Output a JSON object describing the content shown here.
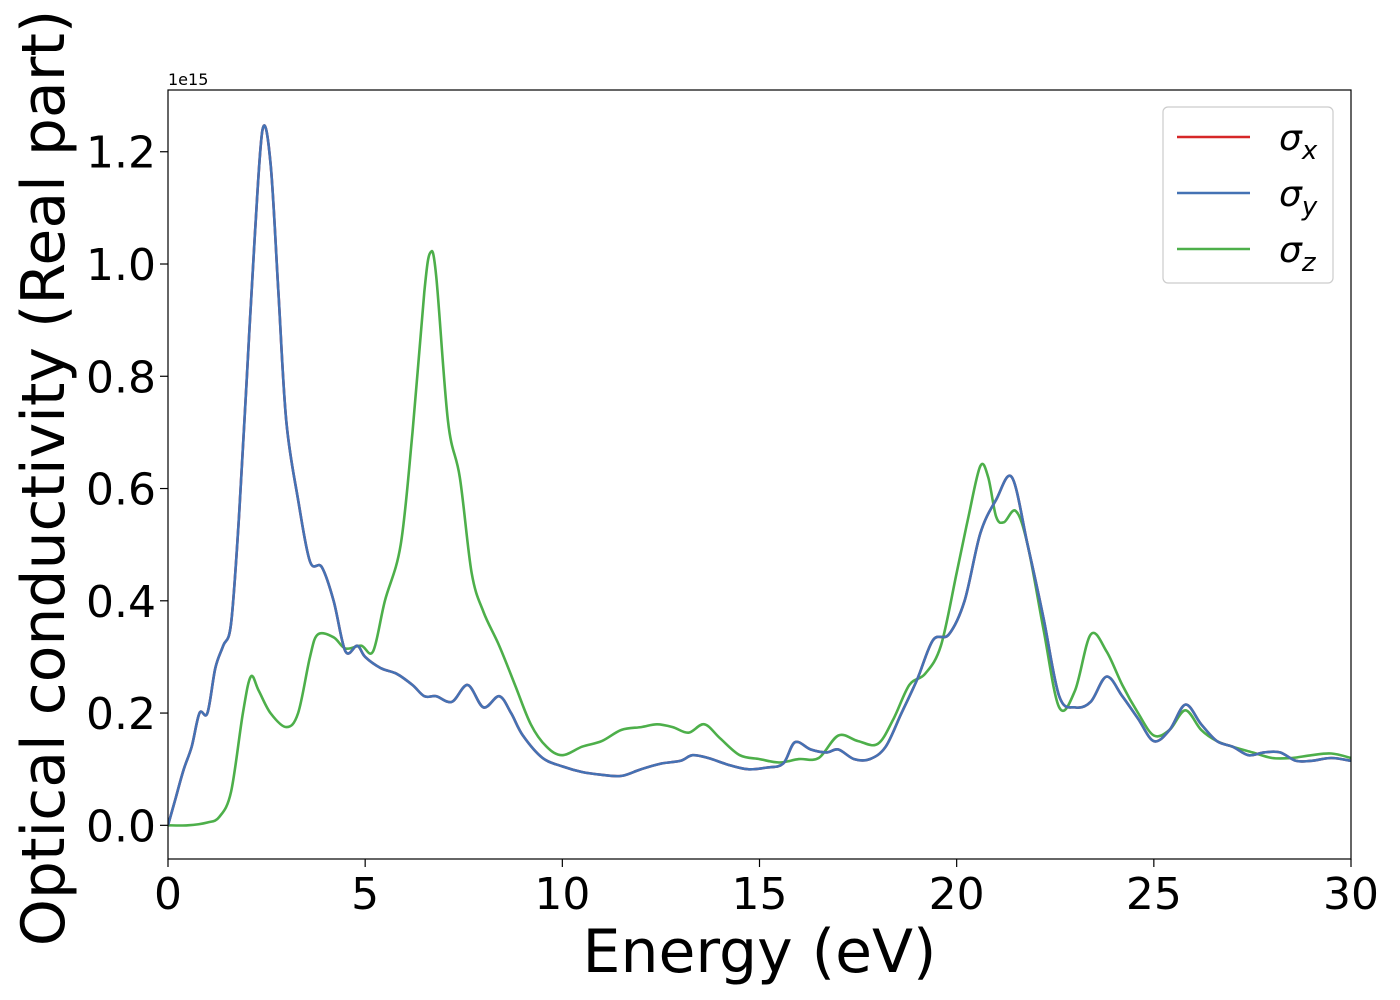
{
  "chart_data": {
    "type": "line",
    "xlabel": "Energy (eV)",
    "ylabel": "Optical conductivity (Real part)",
    "y_offset_text": "1e15",
    "xlim": [
      0,
      30
    ],
    "ylim": [
      -0.06,
      1.31
    ],
    "x_ticks": [
      0,
      5,
      10,
      15,
      20,
      25,
      30
    ],
    "x_tick_labels": [
      "0",
      "5",
      "10",
      "15",
      "20",
      "25",
      "30"
    ],
    "y_ticks": [
      0.0,
      0.2,
      0.4,
      0.6,
      0.8,
      1.0,
      1.2
    ],
    "y_tick_labels": [
      "0.0",
      "0.2",
      "0.4",
      "0.6",
      "0.8",
      "1.0",
      "1.2"
    ],
    "grid": false,
    "legend_position": "top-right",
    "series": [
      {
        "name": "σx",
        "legend_symbol": "σ",
        "legend_sub": "x",
        "color": "#d62728",
        "points": [
          [
            0,
            0
          ],
          [
            0.2,
            0.05
          ],
          [
            0.4,
            0.1
          ],
          [
            0.6,
            0.14
          ],
          [
            0.8,
            0.2
          ],
          [
            1.0,
            0.2
          ],
          [
            1.2,
            0.28
          ],
          [
            1.4,
            0.32
          ],
          [
            1.6,
            0.36
          ],
          [
            1.8,
            0.55
          ],
          [
            2.0,
            0.8
          ],
          [
            2.2,
            1.05
          ],
          [
            2.4,
            1.24
          ],
          [
            2.6,
            1.18
          ],
          [
            2.8,
            0.95
          ],
          [
            3.0,
            0.72
          ],
          [
            3.3,
            0.58
          ],
          [
            3.6,
            0.47
          ],
          [
            3.9,
            0.46
          ],
          [
            4.2,
            0.4
          ],
          [
            4.5,
            0.31
          ],
          [
            4.8,
            0.32
          ],
          [
            5.0,
            0.3
          ],
          [
            5.4,
            0.28
          ],
          [
            5.8,
            0.27
          ],
          [
            6.2,
            0.25
          ],
          [
            6.5,
            0.23
          ],
          [
            6.8,
            0.23
          ],
          [
            7.2,
            0.22
          ],
          [
            7.6,
            0.25
          ],
          [
            8.0,
            0.21
          ],
          [
            8.4,
            0.23
          ],
          [
            8.7,
            0.2
          ],
          [
            9.0,
            0.16
          ],
          [
            9.5,
            0.12
          ],
          [
            10.0,
            0.105
          ],
          [
            10.5,
            0.095
          ],
          [
            11.0,
            0.09
          ],
          [
            11.5,
            0.088
          ],
          [
            12.0,
            0.1
          ],
          [
            12.5,
            0.11
          ],
          [
            13.0,
            0.115
          ],
          [
            13.3,
            0.125
          ],
          [
            13.7,
            0.12
          ],
          [
            14.2,
            0.108
          ],
          [
            14.7,
            0.1
          ],
          [
            15.2,
            0.103
          ],
          [
            15.6,
            0.11
          ],
          [
            15.9,
            0.148
          ],
          [
            16.3,
            0.135
          ],
          [
            16.7,
            0.13
          ],
          [
            17.0,
            0.135
          ],
          [
            17.4,
            0.118
          ],
          [
            17.8,
            0.118
          ],
          [
            18.2,
            0.14
          ],
          [
            18.6,
            0.2
          ],
          [
            19.0,
            0.26
          ],
          [
            19.4,
            0.33
          ],
          [
            19.8,
            0.34
          ],
          [
            20.2,
            0.4
          ],
          [
            20.6,
            0.52
          ],
          [
            21.0,
            0.58
          ],
          [
            21.4,
            0.62
          ],
          [
            21.8,
            0.5
          ],
          [
            22.2,
            0.37
          ],
          [
            22.6,
            0.23
          ],
          [
            23.0,
            0.21
          ],
          [
            23.4,
            0.22
          ],
          [
            23.8,
            0.265
          ],
          [
            24.2,
            0.23
          ],
          [
            24.6,
            0.19
          ],
          [
            25.0,
            0.15
          ],
          [
            25.4,
            0.17
          ],
          [
            25.8,
            0.215
          ],
          [
            26.2,
            0.18
          ],
          [
            26.6,
            0.15
          ],
          [
            27.0,
            0.14
          ],
          [
            27.4,
            0.125
          ],
          [
            27.8,
            0.13
          ],
          [
            28.2,
            0.13
          ],
          [
            28.6,
            0.115
          ],
          [
            29.0,
            0.115
          ],
          [
            29.5,
            0.12
          ],
          [
            30.0,
            0.115
          ]
        ]
      },
      {
        "name": "σy",
        "legend_symbol": "σ",
        "legend_sub": "y",
        "color": "#4472b4",
        "points": [
          [
            0,
            0
          ],
          [
            0.2,
            0.05
          ],
          [
            0.4,
            0.1
          ],
          [
            0.6,
            0.14
          ],
          [
            0.8,
            0.2
          ],
          [
            1.0,
            0.2
          ],
          [
            1.2,
            0.28
          ],
          [
            1.4,
            0.32
          ],
          [
            1.6,
            0.36
          ],
          [
            1.8,
            0.55
          ],
          [
            2.0,
            0.8
          ],
          [
            2.2,
            1.05
          ],
          [
            2.4,
            1.24
          ],
          [
            2.6,
            1.18
          ],
          [
            2.8,
            0.95
          ],
          [
            3.0,
            0.72
          ],
          [
            3.3,
            0.58
          ],
          [
            3.6,
            0.47
          ],
          [
            3.9,
            0.46
          ],
          [
            4.2,
            0.4
          ],
          [
            4.5,
            0.31
          ],
          [
            4.8,
            0.32
          ],
          [
            5.0,
            0.3
          ],
          [
            5.4,
            0.28
          ],
          [
            5.8,
            0.27
          ],
          [
            6.2,
            0.25
          ],
          [
            6.5,
            0.23
          ],
          [
            6.8,
            0.23
          ],
          [
            7.2,
            0.22
          ],
          [
            7.6,
            0.25
          ],
          [
            8.0,
            0.21
          ],
          [
            8.4,
            0.23
          ],
          [
            8.7,
            0.2
          ],
          [
            9.0,
            0.16
          ],
          [
            9.5,
            0.12
          ],
          [
            10.0,
            0.105
          ],
          [
            10.5,
            0.095
          ],
          [
            11.0,
            0.09
          ],
          [
            11.5,
            0.088
          ],
          [
            12.0,
            0.1
          ],
          [
            12.5,
            0.11
          ],
          [
            13.0,
            0.115
          ],
          [
            13.3,
            0.125
          ],
          [
            13.7,
            0.12
          ],
          [
            14.2,
            0.108
          ],
          [
            14.7,
            0.1
          ],
          [
            15.2,
            0.103
          ],
          [
            15.6,
            0.11
          ],
          [
            15.9,
            0.148
          ],
          [
            16.3,
            0.135
          ],
          [
            16.7,
            0.13
          ],
          [
            17.0,
            0.135
          ],
          [
            17.4,
            0.118
          ],
          [
            17.8,
            0.118
          ],
          [
            18.2,
            0.14
          ],
          [
            18.6,
            0.2
          ],
          [
            19.0,
            0.26
          ],
          [
            19.4,
            0.33
          ],
          [
            19.8,
            0.34
          ],
          [
            20.2,
            0.4
          ],
          [
            20.6,
            0.52
          ],
          [
            21.0,
            0.58
          ],
          [
            21.4,
            0.62
          ],
          [
            21.8,
            0.5
          ],
          [
            22.2,
            0.37
          ],
          [
            22.6,
            0.23
          ],
          [
            23.0,
            0.21
          ],
          [
            23.4,
            0.22
          ],
          [
            23.8,
            0.265
          ],
          [
            24.2,
            0.23
          ],
          [
            24.6,
            0.19
          ],
          [
            25.0,
            0.15
          ],
          [
            25.4,
            0.17
          ],
          [
            25.8,
            0.215
          ],
          [
            26.2,
            0.18
          ],
          [
            26.6,
            0.15
          ],
          [
            27.0,
            0.14
          ],
          [
            27.4,
            0.125
          ],
          [
            27.8,
            0.13
          ],
          [
            28.2,
            0.13
          ],
          [
            28.6,
            0.115
          ],
          [
            29.0,
            0.115
          ],
          [
            29.5,
            0.12
          ],
          [
            30.0,
            0.115
          ]
        ]
      },
      {
        "name": "σz",
        "legend_symbol": "σ",
        "legend_sub": "z",
        "color": "#4daf4a",
        "points": [
          [
            0,
            0
          ],
          [
            0.5,
            0.0
          ],
          [
            1.0,
            0.005
          ],
          [
            1.3,
            0.015
          ],
          [
            1.6,
            0.06
          ],
          [
            1.9,
            0.2
          ],
          [
            2.1,
            0.265
          ],
          [
            2.3,
            0.24
          ],
          [
            2.6,
            0.2
          ],
          [
            3.0,
            0.175
          ],
          [
            3.3,
            0.2
          ],
          [
            3.6,
            0.3
          ],
          [
            3.8,
            0.34
          ],
          [
            4.2,
            0.335
          ],
          [
            4.5,
            0.315
          ],
          [
            4.9,
            0.32
          ],
          [
            5.2,
            0.31
          ],
          [
            5.5,
            0.4
          ],
          [
            5.9,
            0.5
          ],
          [
            6.2,
            0.7
          ],
          [
            6.5,
            0.95
          ],
          [
            6.65,
            1.02
          ],
          [
            6.8,
            0.98
          ],
          [
            7.1,
            0.72
          ],
          [
            7.4,
            0.62
          ],
          [
            7.7,
            0.45
          ],
          [
            8.0,
            0.38
          ],
          [
            8.4,
            0.32
          ],
          [
            8.8,
            0.25
          ],
          [
            9.2,
            0.18
          ],
          [
            9.6,
            0.14
          ],
          [
            10.0,
            0.125
          ],
          [
            10.5,
            0.14
          ],
          [
            11.0,
            0.15
          ],
          [
            11.5,
            0.17
          ],
          [
            12.0,
            0.175
          ],
          [
            12.4,
            0.18
          ],
          [
            12.8,
            0.175
          ],
          [
            13.2,
            0.165
          ],
          [
            13.6,
            0.18
          ],
          [
            14.0,
            0.155
          ],
          [
            14.5,
            0.125
          ],
          [
            15.0,
            0.118
          ],
          [
            15.5,
            0.112
          ],
          [
            16.0,
            0.118
          ],
          [
            16.5,
            0.12
          ],
          [
            17.0,
            0.16
          ],
          [
            17.5,
            0.15
          ],
          [
            18.0,
            0.145
          ],
          [
            18.4,
            0.19
          ],
          [
            18.8,
            0.25
          ],
          [
            19.2,
            0.27
          ],
          [
            19.6,
            0.32
          ],
          [
            20.0,
            0.45
          ],
          [
            20.3,
            0.55
          ],
          [
            20.6,
            0.64
          ],
          [
            20.8,
            0.62
          ],
          [
            21.0,
            0.55
          ],
          [
            21.2,
            0.54
          ],
          [
            21.5,
            0.56
          ],
          [
            21.8,
            0.5
          ],
          [
            22.2,
            0.35
          ],
          [
            22.6,
            0.21
          ],
          [
            23.0,
            0.24
          ],
          [
            23.4,
            0.34
          ],
          [
            23.8,
            0.31
          ],
          [
            24.2,
            0.25
          ],
          [
            24.6,
            0.2
          ],
          [
            25.0,
            0.16
          ],
          [
            25.4,
            0.17
          ],
          [
            25.8,
            0.205
          ],
          [
            26.2,
            0.17
          ],
          [
            26.6,
            0.15
          ],
          [
            27.0,
            0.14
          ],
          [
            27.5,
            0.13
          ],
          [
            28.0,
            0.12
          ],
          [
            28.5,
            0.12
          ],
          [
            29.0,
            0.125
          ],
          [
            29.5,
            0.128
          ],
          [
            30.0,
            0.12
          ]
        ]
      }
    ]
  }
}
